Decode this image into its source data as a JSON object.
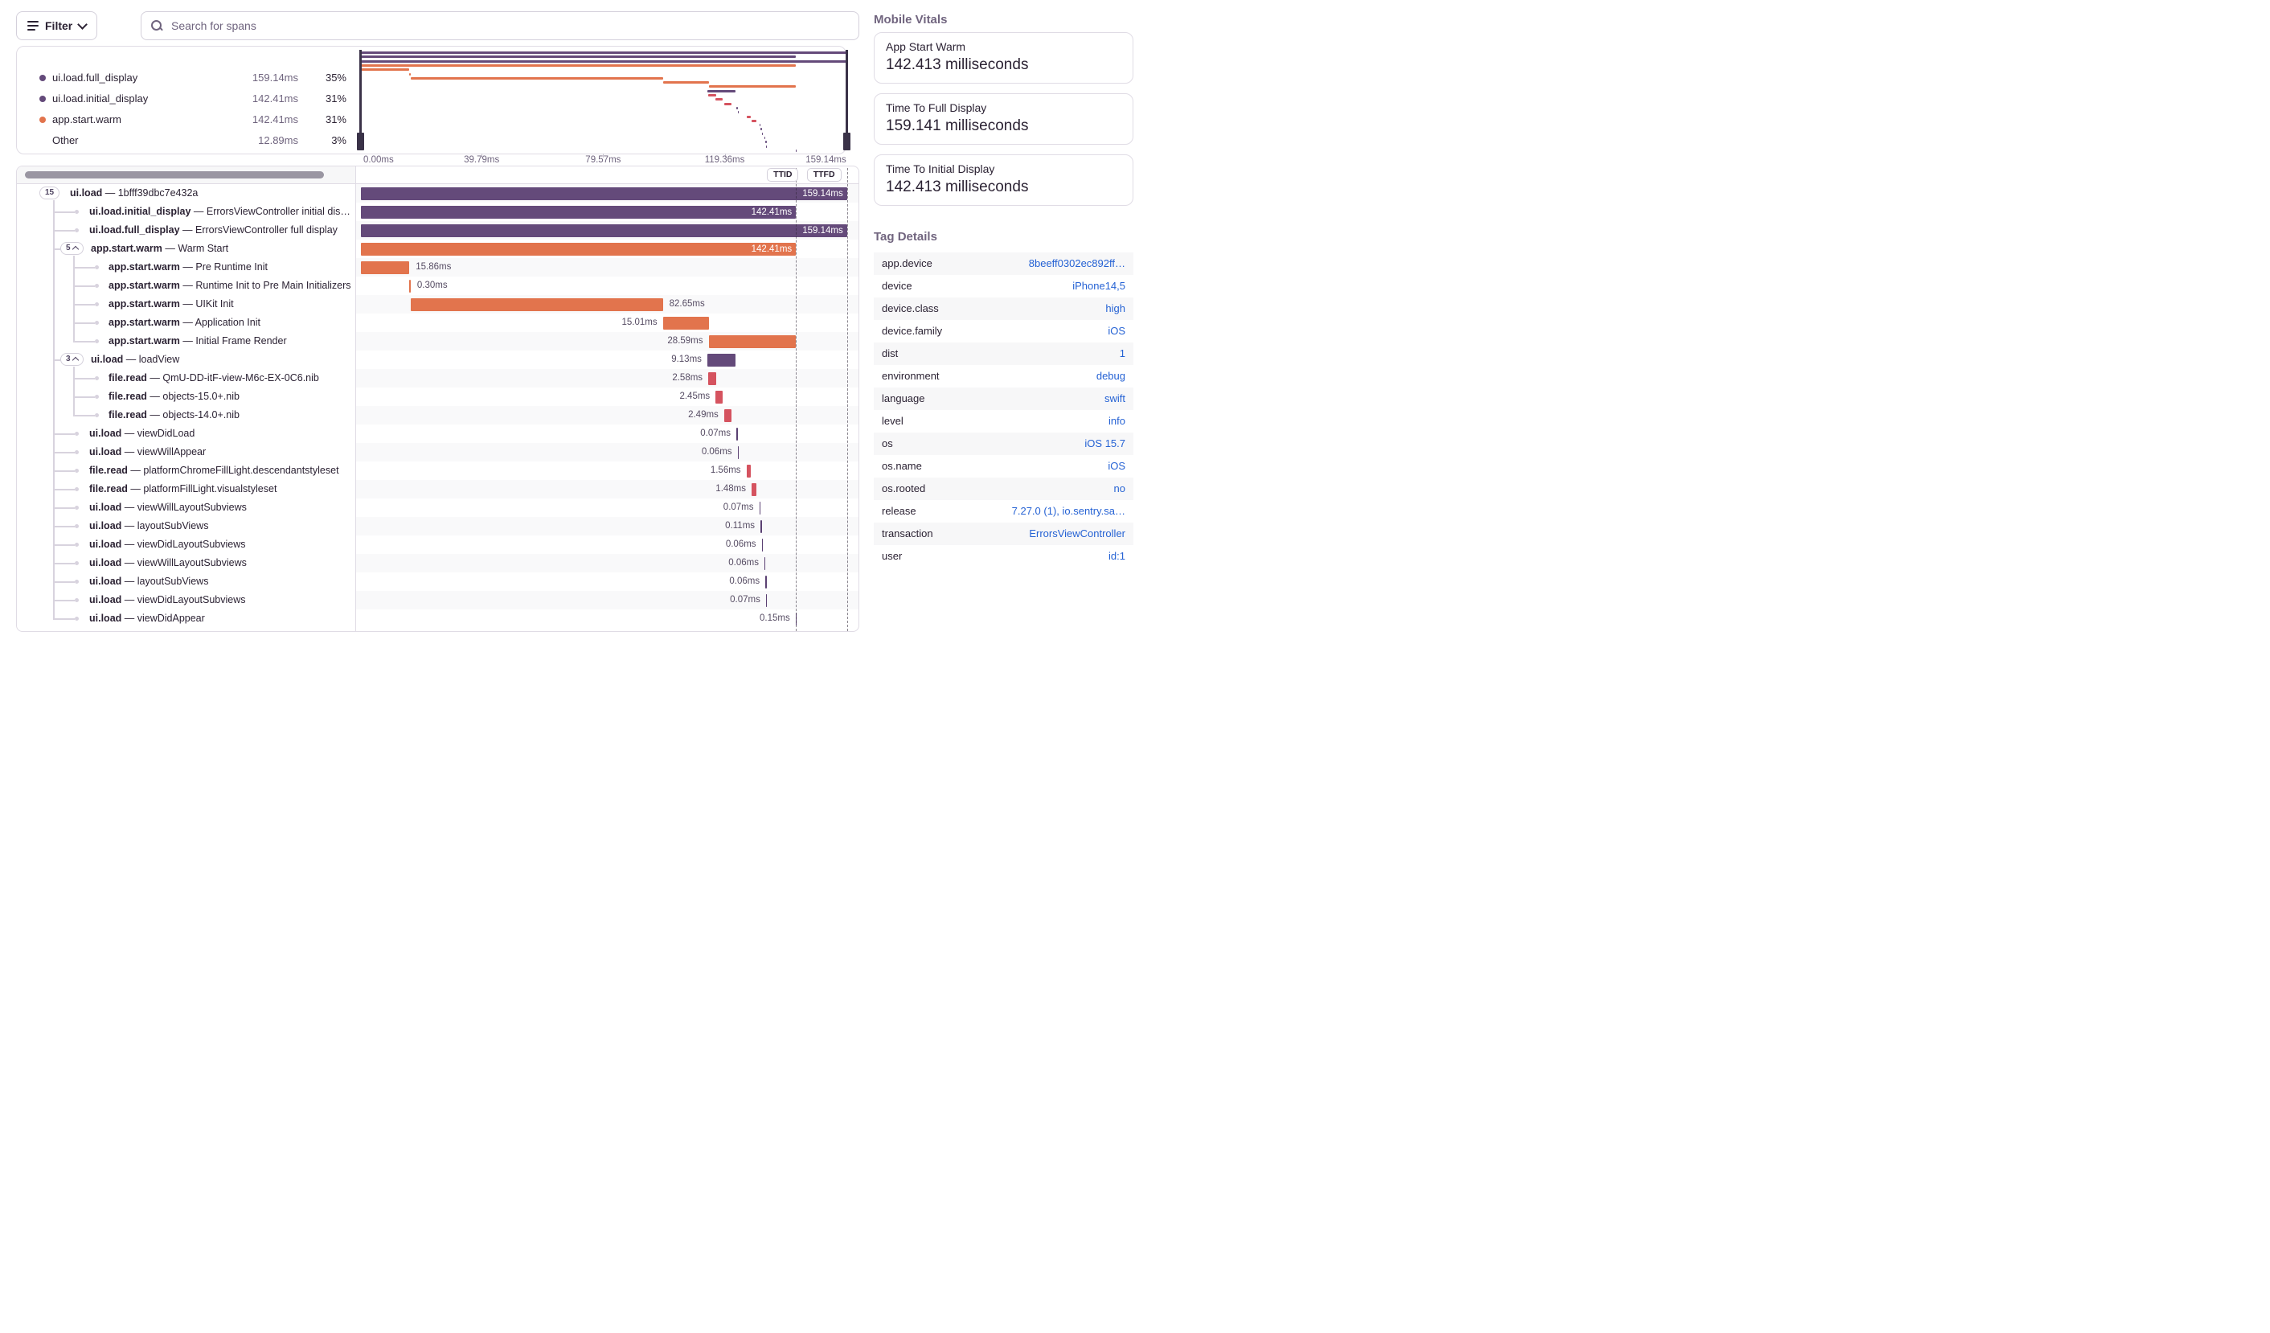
{
  "toolbar": {
    "filter_label": "Filter",
    "search_placeholder": "Search for spans"
  },
  "legend": {
    "items": [
      {
        "label": "ui.load.full_display",
        "value": "159.14ms",
        "pct": "35%",
        "color": "purple"
      },
      {
        "label": "ui.load.initial_display",
        "value": "142.41ms",
        "pct": "31%",
        "color": "purple"
      },
      {
        "label": "app.start.warm",
        "value": "142.41ms",
        "pct": "31%",
        "color": "orange"
      },
      {
        "label": "Other",
        "value": "12.89ms",
        "pct": "3%",
        "color": null
      }
    ]
  },
  "axis": {
    "ticks": [
      {
        "label": "0.00ms",
        "ms": 0,
        "align": "left"
      },
      {
        "label": "39.79ms",
        "ms": 39.79,
        "align": "center"
      },
      {
        "label": "79.57ms",
        "ms": 79.57,
        "align": "center"
      },
      {
        "label": "119.36ms",
        "ms": 119.36,
        "align": "center"
      },
      {
        "label": "159.14ms",
        "ms": 159.14,
        "align": "right"
      }
    ]
  },
  "controls": {
    "ttid": "TTID",
    "ttfd": "TTFD"
  },
  "markers": {
    "ttid_ms": 142.41,
    "ttfd_ms": 159.14,
    "total_ms": 159.14
  },
  "spans": [
    {
      "op": "ui.load",
      "desc": "1bfff39dbc7e432a",
      "badge": "15",
      "chev": false,
      "depth": 0,
      "start": 0,
      "dur": 159.14,
      "label": "159.14ms",
      "pos": "inside",
      "color": "purple"
    },
    {
      "op": "ui.load.initial_display",
      "desc": "ErrorsViewController initial display",
      "depth": 1,
      "start": 0,
      "dur": 142.41,
      "label": "142.41ms",
      "pos": "inside",
      "color": "purple"
    },
    {
      "op": "ui.load.full_display",
      "desc": "ErrorsViewController full display",
      "depth": 1,
      "start": 0,
      "dur": 159.14,
      "label": "159.14ms",
      "pos": "inside",
      "color": "purple"
    },
    {
      "op": "app.start.warm",
      "desc": "Warm Start",
      "badge": "5",
      "chev": true,
      "depth": 1,
      "start": 0,
      "dur": 142.41,
      "label": "142.41ms",
      "pos": "inside",
      "color": "orange"
    },
    {
      "op": "app.start.warm",
      "desc": "Pre Runtime Init",
      "depth": 2,
      "start": 0,
      "dur": 15.86,
      "label": "15.86ms",
      "pos": "right",
      "color": "orange"
    },
    {
      "op": "app.start.warm",
      "desc": "Runtime Init to Pre Main Initializers",
      "depth": 2,
      "start": 15.9,
      "dur": 0.3,
      "label": "0.30ms",
      "pos": "right",
      "color": "orange"
    },
    {
      "op": "app.start.warm",
      "desc": "UIKit Init",
      "depth": 2,
      "start": 16.2,
      "dur": 82.65,
      "label": "82.65ms",
      "pos": "right",
      "color": "orange"
    },
    {
      "op": "app.start.warm",
      "desc": "Application Init",
      "depth": 2,
      "start": 98.85,
      "dur": 15.01,
      "label": "15.01ms",
      "pos": "left",
      "color": "orange"
    },
    {
      "op": "app.start.warm",
      "desc": "Initial Frame Render",
      "depth": 2,
      "start": 113.82,
      "dur": 28.59,
      "label": "28.59ms",
      "pos": "left",
      "color": "orange"
    },
    {
      "op": "ui.load",
      "desc": "loadView",
      "badge": "3",
      "chev": true,
      "depth": 1,
      "start": 113.4,
      "dur": 9.13,
      "label": "9.13ms",
      "pos": "left",
      "color": "purple"
    },
    {
      "op": "file.read",
      "desc": "QmU-DD-itF-view-M6c-EX-0C6.nib",
      "depth": 2,
      "start": 113.7,
      "dur": 2.58,
      "label": "2.58ms",
      "pos": "left",
      "color": "red"
    },
    {
      "op": "file.read",
      "desc": "objects-15.0+.nib",
      "depth": 2,
      "start": 116.1,
      "dur": 2.45,
      "label": "2.45ms",
      "pos": "left",
      "color": "red"
    },
    {
      "op": "file.read",
      "desc": "objects-14.0+.nib",
      "depth": 2,
      "start": 118.9,
      "dur": 2.49,
      "label": "2.49ms",
      "pos": "left",
      "color": "red"
    },
    {
      "op": "ui.load",
      "desc": "viewDidLoad",
      "depth": 1,
      "start": 122.9,
      "dur": 0.07,
      "label": "0.07ms",
      "pos": "left",
      "color": "tick"
    },
    {
      "op": "ui.load",
      "desc": "viewWillAppear",
      "depth": 1,
      "start": 123.3,
      "dur": 0.06,
      "label": "0.06ms",
      "pos": "left",
      "color": "tick"
    },
    {
      "op": "file.read",
      "desc": "platformChromeFillLight.descendantstyleset",
      "depth": 1,
      "start": 126.2,
      "dur": 1.56,
      "label": "1.56ms",
      "pos": "left",
      "color": "red"
    },
    {
      "op": "file.read",
      "desc": "platformFillLight.visualstyleset",
      "depth": 1,
      "start": 127.9,
      "dur": 1.48,
      "label": "1.48ms",
      "pos": "left",
      "color": "red"
    },
    {
      "op": "ui.load",
      "desc": "viewWillLayoutSubviews",
      "depth": 1,
      "start": 130.4,
      "dur": 0.07,
      "label": "0.07ms",
      "pos": "left",
      "color": "tick"
    },
    {
      "op": "ui.load",
      "desc": "layoutSubViews",
      "depth": 1,
      "start": 130.8,
      "dur": 0.11,
      "label": "0.11ms",
      "pos": "left",
      "color": "tick"
    },
    {
      "op": "ui.load",
      "desc": "viewDidLayoutSubviews",
      "depth": 1,
      "start": 131.2,
      "dur": 0.06,
      "label": "0.06ms",
      "pos": "left",
      "color": "tick"
    },
    {
      "op": "ui.load",
      "desc": "viewWillLayoutSubviews",
      "depth": 1,
      "start": 132.1,
      "dur": 0.06,
      "label": "0.06ms",
      "pos": "left",
      "color": "tick"
    },
    {
      "op": "ui.load",
      "desc": "layoutSubViews",
      "depth": 1,
      "start": 132.4,
      "dur": 0.06,
      "label": "0.06ms",
      "pos": "left",
      "color": "tick"
    },
    {
      "op": "ui.load",
      "desc": "viewDidLayoutSubviews",
      "depth": 1,
      "start": 132.6,
      "dur": 0.07,
      "label": "0.07ms",
      "pos": "left",
      "color": "tick"
    },
    {
      "op": "ui.load",
      "desc": "viewDidAppear",
      "depth": 1,
      "start": 142.3,
      "dur": 0.15,
      "label": "0.15ms",
      "pos": "left",
      "color": "tick"
    }
  ],
  "vitals": {
    "title": "Mobile Vitals",
    "cards": [
      {
        "label": "App Start Warm",
        "value": "142.413 milliseconds"
      },
      {
        "label": "Time To Full Display",
        "value": "159.141 milliseconds"
      },
      {
        "label": "Time To Initial Display",
        "value": "142.413 milliseconds"
      }
    ]
  },
  "tags": {
    "title": "Tag Details",
    "rows": [
      {
        "key": "app.device",
        "value": "8beeff0302ec892ff…"
      },
      {
        "key": "device",
        "value": "iPhone14,5"
      },
      {
        "key": "device.class",
        "value": "high"
      },
      {
        "key": "device.family",
        "value": "iOS"
      },
      {
        "key": "dist",
        "value": "1"
      },
      {
        "key": "environment",
        "value": "debug"
      },
      {
        "key": "language",
        "value": "swift"
      },
      {
        "key": "level",
        "value": "info"
      },
      {
        "key": "os",
        "value": "iOS 15.7"
      },
      {
        "key": "os.name",
        "value": "iOS"
      },
      {
        "key": "os.rooted",
        "value": "no"
      },
      {
        "key": "release",
        "value": "7.27.0 (1), io.sentry.sa…"
      },
      {
        "key": "transaction",
        "value": "ErrorsViewController"
      },
      {
        "key": "user",
        "value": "id:1"
      }
    ]
  },
  "colors": {
    "purple": "#644A7A",
    "orange": "#E2744D",
    "red": "#D5535F",
    "tick": "#5A4072",
    "link": "#2562D4",
    "border": "#E0DCE5",
    "stripe": "#F9F9FA",
    "handle": "#3A3248"
  }
}
